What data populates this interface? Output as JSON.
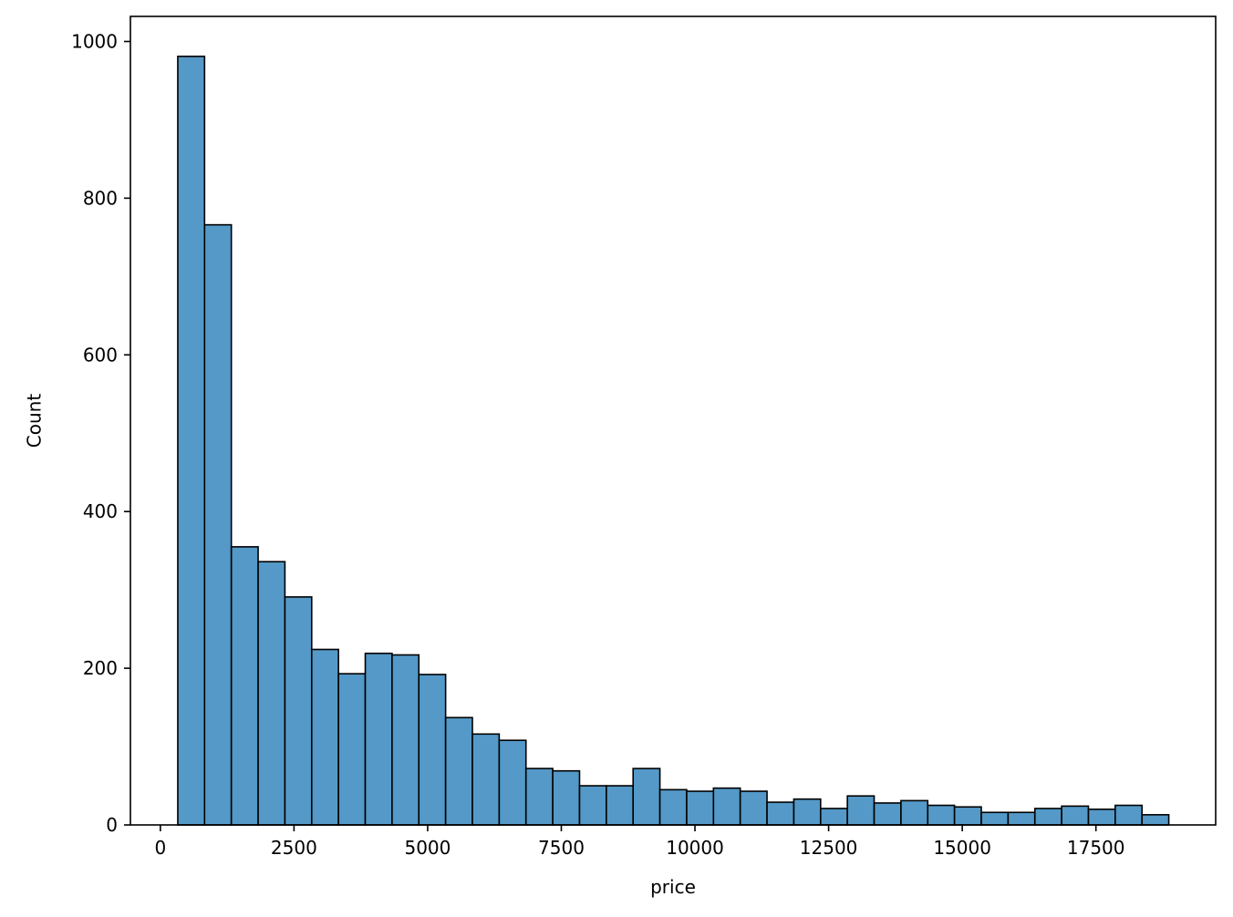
{
  "chart_data": {
    "type": "bar",
    "subtype": "histogram",
    "title": "",
    "xlabel": "price",
    "ylabel": "Count",
    "xlim": [
      -560,
      19740
    ],
    "ylim": [
      0,
      1032
    ],
    "x_ticks": [
      0,
      2500,
      5000,
      7500,
      10000,
      12500,
      15000,
      17500
    ],
    "y_ticks": [
      0,
      200,
      400,
      600,
      800,
      1000
    ],
    "grid": false,
    "legend": null,
    "bar_color": "#5499c7",
    "edge_color": "#000000",
    "bins": [
      {
        "x0": 326,
        "x1": 827,
        "count": 981
      },
      {
        "x0": 827,
        "x1": 1328,
        "count": 766
      },
      {
        "x0": 1328,
        "x1": 1829,
        "count": 355
      },
      {
        "x0": 1829,
        "x1": 2330,
        "count": 336
      },
      {
        "x0": 2330,
        "x1": 2831,
        "count": 291
      },
      {
        "x0": 2831,
        "x1": 3332,
        "count": 224
      },
      {
        "x0": 3332,
        "x1": 3833,
        "count": 193
      },
      {
        "x0": 3833,
        "x1": 4334,
        "count": 219
      },
      {
        "x0": 4334,
        "x1": 4835,
        "count": 217
      },
      {
        "x0": 4835,
        "x1": 5336,
        "count": 192
      },
      {
        "x0": 5336,
        "x1": 5837,
        "count": 137
      },
      {
        "x0": 5837,
        "x1": 6338,
        "count": 116
      },
      {
        "x0": 6338,
        "x1": 6839,
        "count": 108
      },
      {
        "x0": 6839,
        "x1": 7340,
        "count": 72
      },
      {
        "x0": 7340,
        "x1": 7841,
        "count": 69
      },
      {
        "x0": 7841,
        "x1": 8342,
        "count": 50
      },
      {
        "x0": 8342,
        "x1": 8843,
        "count": 50
      },
      {
        "x0": 8843,
        "x1": 9344,
        "count": 72
      },
      {
        "x0": 9344,
        "x1": 9845,
        "count": 45
      },
      {
        "x0": 9845,
        "x1": 10346,
        "count": 43
      },
      {
        "x0": 10346,
        "x1": 10847,
        "count": 47
      },
      {
        "x0": 10847,
        "x1": 11348,
        "count": 43
      },
      {
        "x0": 11348,
        "x1": 11849,
        "count": 29
      },
      {
        "x0": 11849,
        "x1": 12350,
        "count": 33
      },
      {
        "x0": 12350,
        "x1": 12851,
        "count": 21
      },
      {
        "x0": 12851,
        "x1": 13352,
        "count": 37
      },
      {
        "x0": 13352,
        "x1": 13853,
        "count": 28
      },
      {
        "x0": 13853,
        "x1": 14354,
        "count": 31
      },
      {
        "x0": 14354,
        "x1": 14855,
        "count": 25
      },
      {
        "x0": 14855,
        "x1": 15356,
        "count": 23
      },
      {
        "x0": 15356,
        "x1": 15857,
        "count": 16
      },
      {
        "x0": 15857,
        "x1": 16358,
        "count": 16
      },
      {
        "x0": 16358,
        "x1": 16859,
        "count": 21
      },
      {
        "x0": 16859,
        "x1": 17360,
        "count": 24
      },
      {
        "x0": 17360,
        "x1": 17861,
        "count": 20
      },
      {
        "x0": 17861,
        "x1": 18362,
        "count": 25
      },
      {
        "x0": 18362,
        "x1": 18863,
        "count": 13
      }
    ]
  }
}
